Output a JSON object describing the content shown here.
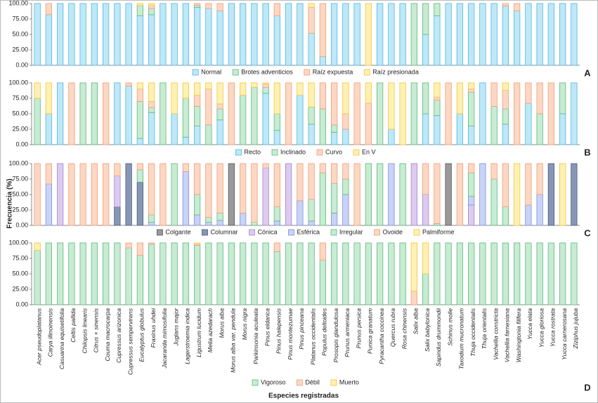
{
  "chart_data": [
    {
      "type": "bar",
      "stacked": true,
      "label": "A",
      "ylabel": "Frecuencia (%)",
      "ylim": [
        0,
        100
      ],
      "yticks": [
        {
          "value": 0,
          "label": "0.00"
        },
        {
          "value": 25,
          "label": "25.00"
        },
        {
          "value": 50,
          "label": "50.00"
        },
        {
          "value": 75,
          "label": "75.00"
        },
        {
          "value": 100,
          "label": "100.00"
        }
      ],
      "series": [
        {
          "name": "Normal",
          "color": "#bfe8f7",
          "edge": "#4fb6df",
          "values": [
            100,
            82,
            100,
            100,
            100,
            100,
            100,
            100,
            100,
            80,
            82,
            100,
            100,
            100,
            94,
            92,
            88,
            100,
            100,
            100,
            100,
            80,
            100,
            100,
            52,
            14,
            100,
            100,
            100,
            0,
            100,
            100,
            100,
            0,
            50,
            80,
            100,
            100,
            100,
            100,
            100,
            96,
            88,
            100,
            100,
            100,
            100,
            100
          ]
        },
        {
          "name": "Brotes adventicios",
          "color": "#c8ebd3",
          "edge": "#5fb97d",
          "values": [
            0,
            0,
            0,
            0,
            0,
            0,
            0,
            0,
            0,
            17,
            10,
            0,
            0,
            0,
            3,
            0,
            0,
            0,
            0,
            0,
            0,
            0,
            0,
            0,
            0,
            0,
            0,
            0,
            0,
            0,
            0,
            0,
            0,
            100,
            50,
            20,
            0,
            0,
            0,
            0,
            0,
            0,
            0,
            0,
            0,
            0,
            0,
            0
          ]
        },
        {
          "name": "Raíz expuesta",
          "color": "#fcd8c4",
          "edge": "#ee9f78",
          "values": [
            0,
            18,
            0,
            0,
            0,
            0,
            0,
            0,
            0,
            0,
            5,
            0,
            0,
            0,
            3,
            8,
            12,
            0,
            0,
            0,
            0,
            20,
            0,
            0,
            42,
            86,
            0,
            0,
            0,
            0,
            0,
            0,
            0,
            0,
            0,
            0,
            0,
            0,
            0,
            0,
            0,
            4,
            12,
            0,
            0,
            0,
            0,
            0
          ]
        },
        {
          "name": "Raíz presionada",
          "color": "#fff1b3",
          "edge": "#f1c543",
          "values": [
            0,
            0,
            0,
            0,
            0,
            0,
            0,
            0,
            0,
            3,
            3,
            0,
            0,
            0,
            0,
            0,
            0,
            0,
            0,
            0,
            0,
            0,
            0,
            0,
            6,
            0,
            0,
            0,
            0,
            100,
            0,
            0,
            0,
            0,
            0,
            0,
            0,
            0,
            0,
            0,
            0,
            0,
            0,
            0,
            0,
            0,
            0,
            0
          ]
        }
      ]
    },
    {
      "type": "bar",
      "stacked": true,
      "label": "B",
      "ylim": [
        0,
        100
      ],
      "yticks": [
        {
          "value": 0,
          "label": "0.00"
        },
        {
          "value": 25,
          "label": "25.00"
        },
        {
          "value": 50,
          "label": "50.00"
        },
        {
          "value": 75,
          "label": "75.00"
        },
        {
          "value": 100,
          "label": "100.00"
        }
      ],
      "series": [
        {
          "name": "Recto",
          "color": "#bfe8f7",
          "edge": "#4fb6df",
          "values": [
            0,
            50,
            100,
            0,
            0,
            0,
            0,
            100,
            95,
            10,
            52,
            0,
            50,
            12,
            30,
            0,
            40,
            0,
            0,
            0,
            83,
            23,
            0,
            80,
            33,
            0,
            20,
            25,
            0,
            0,
            0,
            25,
            0,
            0,
            50,
            47,
            0,
            50,
            30,
            100,
            0,
            33,
            0,
            67,
            0,
            0,
            50,
            100
          ]
        },
        {
          "name": "Inclinado",
          "color": "#c8ebd3",
          "edge": "#5fb97d",
          "values": [
            75,
            0,
            0,
            0,
            100,
            100,
            0,
            0,
            0,
            60,
            8,
            100,
            0,
            63,
            32,
            32,
            18,
            0,
            80,
            93,
            10,
            27,
            0,
            0,
            28,
            58,
            12,
            0,
            0,
            0,
            100,
            0,
            0,
            100,
            50,
            25,
            0,
            0,
            55,
            0,
            62,
            25,
            0,
            0,
            50,
            0,
            50,
            0
          ]
        },
        {
          "name": "Curvo",
          "color": "#fcd8c4",
          "edge": "#ee9f78",
          "values": [
            0,
            0,
            0,
            100,
            0,
            0,
            100,
            0,
            5,
            20,
            10,
            0,
            0,
            0,
            18,
            58,
            8,
            100,
            0,
            0,
            5,
            0,
            100,
            0,
            0,
            42,
            68,
            25,
            100,
            67,
            0,
            0,
            0,
            0,
            0,
            5,
            100,
            0,
            5,
            0,
            38,
            30,
            100,
            33,
            50,
            100,
            0,
            0
          ]
        },
        {
          "name": "En V",
          "color": "#fff1b3",
          "edge": "#f1c543",
          "values": [
            25,
            50,
            0,
            0,
            0,
            0,
            0,
            0,
            0,
            10,
            30,
            0,
            50,
            25,
            20,
            10,
            34,
            0,
            20,
            7,
            2,
            50,
            0,
            20,
            39,
            0,
            0,
            50,
            0,
            33,
            0,
            75,
            100,
            0,
            0,
            23,
            0,
            50,
            10,
            0,
            0,
            12,
            0,
            0,
            0,
            0,
            0,
            0
          ]
        }
      ]
    },
    {
      "type": "bar",
      "stacked": true,
      "label": "C",
      "ylim": [
        0,
        100
      ],
      "yticks": [
        {
          "value": 0,
          "label": "0.00"
        },
        {
          "value": 25,
          "label": "25.00"
        },
        {
          "value": 50,
          "label": "50.00"
        },
        {
          "value": 75,
          "label": "75.00"
        },
        {
          "value": 100,
          "label": "100.00"
        }
      ],
      "series": [
        {
          "name": "Colgante",
          "color": "#9a9a9a",
          "edge": "#555555",
          "values": [
            0,
            0,
            0,
            0,
            0,
            0,
            0,
            0,
            0,
            0,
            0,
            0,
            0,
            0,
            0,
            0,
            0,
            100,
            0,
            0,
            0,
            0,
            0,
            0,
            0,
            0,
            0,
            0,
            0,
            0,
            0,
            0,
            0,
            0,
            0,
            0,
            100,
            0,
            0,
            0,
            0,
            0,
            0,
            0,
            0,
            0,
            0,
            0
          ]
        },
        {
          "name": "Columnar",
          "color": "#8796b4",
          "edge": "#4a5a80",
          "values": [
            0,
            0,
            0,
            0,
            0,
            0,
            0,
            30,
            100,
            70,
            0,
            0,
            0,
            0,
            0,
            0,
            0,
            0,
            0,
            0,
            0,
            0,
            0,
            0,
            0,
            0,
            0,
            0,
            0,
            0,
            0,
            0,
            0,
            0,
            0,
            0,
            0,
            0,
            0,
            0,
            0,
            0,
            0,
            0,
            0,
            100,
            0,
            100
          ]
        },
        {
          "name": "Cónica",
          "color": "#dccbf0",
          "edge": "#a484cf",
          "values": [
            0,
            0,
            100,
            0,
            0,
            0,
            0,
            50,
            0,
            0,
            0,
            0,
            0,
            0,
            0,
            0,
            0,
            0,
            0,
            0,
            93,
            0,
            100,
            0,
            0,
            0,
            0,
            0,
            0,
            0,
            0,
            0,
            0,
            100,
            50,
            0,
            0,
            0,
            33,
            0,
            0,
            0,
            0,
            0,
            0,
            0,
            0,
            0
          ]
        },
        {
          "name": "Esférica",
          "color": "#c9d3f6",
          "edge": "#7f8fe0",
          "values": [
            0,
            67,
            0,
            0,
            0,
            0,
            0,
            0,
            0,
            0,
            5,
            0,
            0,
            87,
            17,
            5,
            8,
            0,
            20,
            0,
            0,
            7,
            0,
            40,
            7,
            0,
            20,
            50,
            0,
            0,
            0,
            100,
            0,
            0,
            0,
            0,
            0,
            0,
            14,
            100,
            0,
            0,
            0,
            33,
            50,
            0,
            0,
            0
          ]
        },
        {
          "name": "Irregular",
          "color": "#c8ebd3",
          "edge": "#5fb97d",
          "values": [
            0,
            0,
            0,
            0,
            0,
            0,
            0,
            0,
            0,
            20,
            12,
            0,
            100,
            0,
            33,
            8,
            12,
            0,
            0,
            5,
            0,
            23,
            0,
            0,
            35,
            85,
            48,
            25,
            0,
            100,
            100,
            0,
            100,
            0,
            0,
            3,
            0,
            0,
            38,
            0,
            75,
            30,
            0,
            0,
            0,
            0,
            0,
            0
          ]
        },
        {
          "name": "Ovoide",
          "color": "#fcd8c4",
          "edge": "#ee9f78",
          "values": [
            100,
            33,
            0,
            100,
            100,
            100,
            100,
            20,
            0,
            10,
            83,
            100,
            0,
            13,
            50,
            87,
            80,
            0,
            80,
            95,
            7,
            70,
            0,
            60,
            58,
            15,
            32,
            25,
            100,
            0,
            0,
            0,
            0,
            0,
            50,
            97,
            0,
            100,
            15,
            0,
            25,
            70,
            0,
            67,
            50,
            0,
            0,
            0
          ]
        },
        {
          "name": "Palmiforme",
          "color": "#fff1b3",
          "edge": "#f1c543",
          "values": [
            0,
            0,
            0,
            0,
            0,
            0,
            0,
            0,
            0,
            0,
            0,
            0,
            0,
            0,
            0,
            0,
            0,
            0,
            0,
            0,
            0,
            0,
            0,
            0,
            0,
            0,
            0,
            0,
            0,
            0,
            0,
            0,
            0,
            0,
            0,
            0,
            0,
            0,
            0,
            0,
            0,
            0,
            100,
            0,
            0,
            0,
            100,
            0
          ]
        }
      ]
    },
    {
      "type": "bar",
      "stacked": true,
      "label": "D",
      "xlabel": "Especies registradas",
      "ylim": [
        0,
        100
      ],
      "yticks": [
        {
          "value": 0,
          "label": "0.00"
        },
        {
          "value": 25,
          "label": "25.00"
        },
        {
          "value": 50,
          "label": "50.00"
        },
        {
          "value": 75,
          "label": "75.00"
        },
        {
          "value": 100,
          "label": "100.00"
        }
      ],
      "categories": [
        "Acer pseudoplatanus",
        "Carya illinoinensis",
        "Casuarina equisetifolia",
        "Celtis pallida",
        "Chilopsis linearis",
        "Citrus × sinensis",
        "Couma macrocarpa",
        "Cupressus arizonica",
        "Cupressus sempervirens",
        "Eucalyptus globulus",
        "Fraxinus uhdei",
        "Jacaranda mimosifolia",
        "Juglans major",
        "Lagerstroemia indica",
        "Ligustrum lucidum",
        "Melia azedarach",
        "Morus alba",
        "Morus alba var. pendula",
        "Morus nigra",
        "Parkinsonia aculeata",
        "Pinus eldarica",
        "Pinus halepensis",
        "Pinus montezumae",
        "Pinus pinceana",
        "Platanus occidentalis",
        "Populus deltoides",
        "Prosopis glandulosa",
        "Prunus armeniaca",
        "Prunus persica",
        "Punica granatum",
        "Pyracantha coccinea",
        "Quercus rubra",
        "Rosa chinensis",
        "Salix alba",
        "Salix babylonica",
        "Sapindus drummondii",
        "Schinus molle",
        "Taxodium mucronatum",
        "Thuja occidentalis",
        "Thuja orientalis",
        "Vachellia constricta",
        "Vachellia farnesiana",
        "Washingtonia filifera",
        "Yucca elata",
        "Yucca gloriosa",
        "Yucca rostrata",
        "Yucca carnerosana",
        "Ziziphus jujuba"
      ],
      "series": [
        {
          "name": "Vigoroso",
          "color": "#c8ebd3",
          "edge": "#5fb97d",
          "values": [
            88,
            100,
            100,
            100,
            100,
            100,
            100,
            100,
            92,
            80,
            98,
            100,
            100,
            100,
            96,
            100,
            100,
            100,
            100,
            100,
            100,
            86,
            100,
            100,
            100,
            72,
            100,
            100,
            100,
            100,
            100,
            100,
            100,
            0,
            50,
            100,
            100,
            100,
            100,
            100,
            100,
            100,
            100,
            100,
            100,
            100,
            100,
            100
          ]
        },
        {
          "name": "Débil",
          "color": "#fcd8c4",
          "edge": "#ee9f78",
          "values": [
            0,
            0,
            0,
            0,
            0,
            0,
            0,
            0,
            8,
            20,
            2,
            0,
            0,
            0,
            2,
            0,
            0,
            0,
            0,
            0,
            0,
            14,
            0,
            0,
            0,
            28,
            0,
            0,
            0,
            0,
            0,
            0,
            0,
            22,
            0,
            0,
            0,
            0,
            0,
            0,
            0,
            0,
            0,
            0,
            0,
            0,
            0,
            0
          ]
        },
        {
          "name": "Muerto",
          "color": "#fff1b3",
          "edge": "#f1c543",
          "values": [
            12,
            0,
            0,
            0,
            0,
            0,
            0,
            0,
            0,
            0,
            0,
            0,
            0,
            0,
            2,
            0,
            0,
            0,
            0,
            0,
            0,
            0,
            0,
            0,
            0,
            0,
            0,
            0,
            0,
            0,
            0,
            0,
            0,
            78,
            50,
            0,
            0,
            0,
            0,
            0,
            0,
            0,
            0,
            0,
            0,
            0,
            0,
            0
          ]
        }
      ]
    }
  ]
}
